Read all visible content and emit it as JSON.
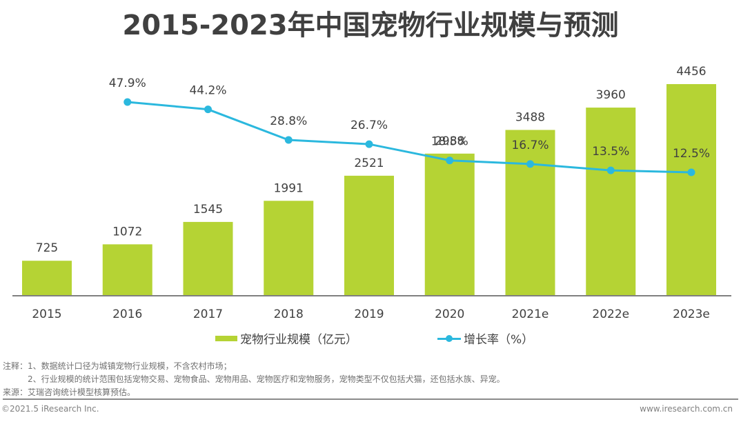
{
  "title": "2015-2023年中国宠物行业规模与预测",
  "chart_data": {
    "type": "bar+line",
    "title": "2015-2023年中国宠物行业规模与预测",
    "categories": [
      "2015",
      "2016",
      "2017",
      "2018",
      "2019",
      "2020",
      "2021e",
      "2022e",
      "2023e"
    ],
    "series": [
      {
        "name": "宠物行业规模（亿元）",
        "type": "bar",
        "color": "#b5d334",
        "values": [
          725,
          1072,
          1545,
          1991,
          2521,
          2988,
          3488,
          3960,
          4456
        ],
        "labels": [
          "725",
          "1072",
          "1545",
          "1991",
          "2521",
          "2988",
          "3488",
          "3960",
          "4456"
        ]
      },
      {
        "name": "增长率（%）",
        "type": "line",
        "color": "#2bb8de",
        "values": [
          null,
          47.9,
          44.2,
          28.8,
          26.7,
          18.5,
          16.7,
          13.5,
          12.5
        ],
        "labels": [
          "",
          "47.9%",
          "44.2%",
          "28.8%",
          "26.7%",
          "18.5%",
          "16.7%",
          "13.5%",
          "12.5%"
        ]
      }
    ],
    "xlabel": "",
    "ylabel": "",
    "ylim": [
      0,
      4456
    ],
    "y2lim": [
      12.5,
      47.9
    ],
    "grid": false,
    "legend": "bottom-center",
    "axis_color": "#7f7f7f",
    "text_color": "#404040"
  },
  "legend": {
    "bar_label": "宠物行业规模（亿元）",
    "line_label": "增长率（%）"
  },
  "notes": {
    "note1": "注释：1、数据统计口径为城镇宠物行业规模，不含农村市场；",
    "note2": "2、行业规模的统计范围包括宠物交易、宠物食品、宠物用品、宠物医疗和宠物服务，宠物类型不仅包括犬猫，还包括水族、异宠。",
    "source": "来源：艾瑞咨询统计模型核算预估。"
  },
  "footer": {
    "copyright": "©2021.5 iResearch Inc.",
    "website": "www.iresearch.com.cn"
  }
}
